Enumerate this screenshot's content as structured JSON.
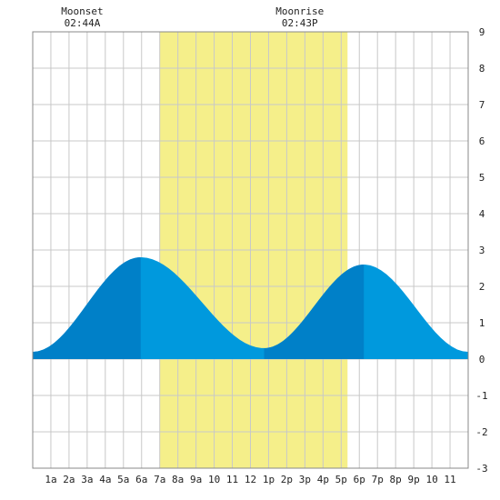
{
  "chart_data": {
    "type": "area",
    "title": "",
    "xlabel": "",
    "ylabel": "",
    "xlim": [
      0,
      24
    ],
    "ylim": [
      -3,
      9
    ],
    "y_ticks": [
      9,
      8,
      7,
      6,
      5,
      4,
      3,
      2,
      1,
      0,
      -1,
      -2,
      -3
    ],
    "x_ticks": [
      {
        "x": 1,
        "label": "1a"
      },
      {
        "x": 2,
        "label": "2a"
      },
      {
        "x": 3,
        "label": "3a"
      },
      {
        "x": 4,
        "label": "4a"
      },
      {
        "x": 5,
        "label": "5a"
      },
      {
        "x": 6,
        "label": "6a"
      },
      {
        "x": 7,
        "label": "7a"
      },
      {
        "x": 8,
        "label": "8a"
      },
      {
        "x": 9,
        "label": "9a"
      },
      {
        "x": 10,
        "label": "10"
      },
      {
        "x": 11,
        "label": "11"
      },
      {
        "x": 12,
        "label": "12"
      },
      {
        "x": 13,
        "label": "1p"
      },
      {
        "x": 14,
        "label": "2p"
      },
      {
        "x": 15,
        "label": "3p"
      },
      {
        "x": 16,
        "label": "4p"
      },
      {
        "x": 17,
        "label": "5p"
      },
      {
        "x": 18,
        "label": "6p"
      },
      {
        "x": 19,
        "label": "7p"
      },
      {
        "x": 20,
        "label": "8p"
      },
      {
        "x": 21,
        "label": "9p"
      },
      {
        "x": 22,
        "label": "10"
      },
      {
        "x": 23,
        "label": "11"
      }
    ],
    "grid": true,
    "daylight": {
      "start": 7.0,
      "end": 17.35,
      "color": "#f5ef8a"
    },
    "annotations": [
      {
        "label": "Moonset",
        "time": "02:44A",
        "x": 2.73
      },
      {
        "label": "Moonrise",
        "time": "02:43P",
        "x": 14.72
      }
    ],
    "tide_extremes": [
      {
        "x": 0.0,
        "y": 0.2
      },
      {
        "x": 5.95,
        "y": 2.8
      },
      {
        "x": 12.75,
        "y": 0.3
      },
      {
        "x": 18.25,
        "y": 2.6
      },
      {
        "x": 24.0,
        "y": 0.2
      }
    ],
    "rising_segments": [
      [
        0.0,
        5.95
      ],
      [
        12.75,
        18.25
      ]
    ],
    "colors": {
      "rising": "#0080c8",
      "falling": "#0099dd",
      "grid": "#c8c8c8",
      "frame": "#888888"
    }
  }
}
